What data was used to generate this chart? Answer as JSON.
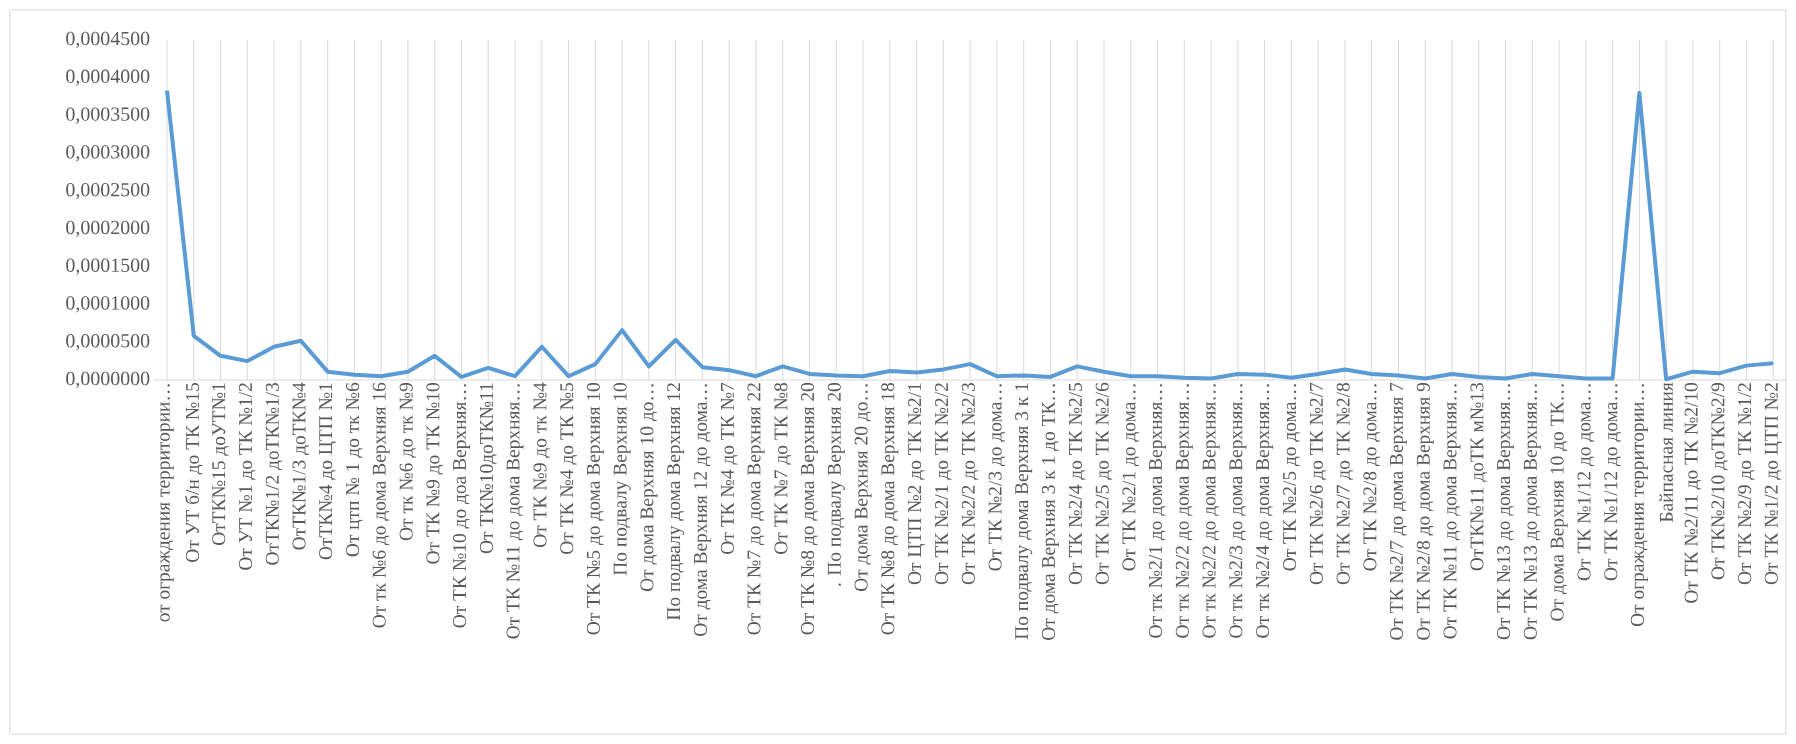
{
  "chart_data": {
    "type": "line",
    "color": "#5b9bd5",
    "line_style": "solid",
    "grid": "x",
    "categories": [
      "от ограждения территории…",
      "От УТ б/н до ТК №15",
      "ОтТК№15 доУТ№1",
      "От УТ №1 до ТК №1/2",
      "ОтТК№1/2 доТК№1/3",
      "ОтТК№1/3 доТК№4",
      "ОтТК№4 до ЦТП №1",
      "От цтп № 1 до тк №6",
      "От тк №6 до дома Верхняя 16",
      "От тк №6 до тк №9",
      "От ТК №9 до ТК №10",
      "От ТК №10 до доа Верхняя…",
      "От ТК№10доТК№11",
      "От ТК №11 до дома Верхняя…",
      "От ТК №9 до тк №4",
      "От ТК №4 до ТК №5",
      "От ТК №5 до дома Верхняя 10",
      "По подвалу Верхняя 10",
      "От дома Верхняя 10 до…",
      "По подвалу дома Верхняя 12",
      "От дома Верхняя 12 до дома…",
      "От ТК №4 до ТК №7",
      "От ТК №7 до дома Верхняя 22",
      "От ТК №7 до ТК №8",
      "От ТК №8 до дома Верхняя 20",
      ". По подвалу Верхняя 20",
      "От дома Верхняя 20 до…",
      "От ТК №8 до дома Верхняя 18",
      "От ЦТП №2 до ТК №2/1",
      "От ТК №2/1 до ТК №2/2",
      "От ТК №2/2 до ТК №2/3",
      "От ТК №2/3 до дома…",
      "По подвалу дома Верхняя 3 к 1",
      "От дома Верхняя 3 к 1 до ТК…",
      "От ТК №2/4 до ТК №2/5",
      "От ТК №2/5 до ТК №2/6",
      "От ТК №2/1 до дома…",
      "От тк №2/1 до дома Верхняя…",
      "От тк №2/2 до дома Верхняя…",
      "От тк №2/2 до дома Верхняя…",
      "От тк №2/3 до дома Верхняя…",
      "От тк №2/4 до дома Верхняя…",
      "От ТК №2/5 до дома…",
      "От ТК №2/6 до ТК №2/7",
      "От ТК №2/7 до ТК №2/8",
      "От ТК №2/8 до дома…",
      "От ТК №2/7 до дома Верхняя 7",
      "От ТК №2/8 до дома Верхняя 9",
      "От ТК №11 до дома Верхняя…",
      "ОтТК№11 доТК м№13",
      "От ТК №13 до дома Верхняя…",
      "От ТК №13 до дома Верхняя…",
      "От дома Верхняя 10 до ТК…",
      "От ТК №1/12 до дома…",
      "От ТК №1/12 до дома…",
      "От ограждения территории…",
      "Байпасная линия",
      "От ТК №2/11 до ТК №2/10",
      "От ТК№2/10 доТК№2/9",
      "От ТК №2/9 до ТК №1/2",
      "От ТК №1/2 до ЦТП №2"
    ],
    "values": [
      0.000383,
      5.85e-05,
      3.2e-05,
      2.5e-05,
      4.4e-05,
      5.2e-05,
      1.1e-05,
      7e-06,
      5e-06,
      1.1e-05,
      3.2e-05,
      4e-06,
      1.6e-05,
      5e-06,
      4.4e-05,
      5e-06,
      2.1e-05,
      6.6e-05,
      1.8e-05,
      5.3e-05,
      1.7e-05,
      1.3e-05,
      5e-06,
      1.8e-05,
      8e-06,
      6e-06,
      5e-06,
      1.2e-05,
      1e-05,
      1.4e-05,
      2.1e-05,
      5e-06,
      6e-06,
      4e-06,
      1.8e-05,
      1.1e-05,
      5e-06,
      5e-06,
      3e-06,
      2e-06,
      8e-06,
      7e-06,
      3e-06,
      8e-06,
      1.4e-05,
      8e-06,
      6e-06,
      2e-06,
      8e-06,
      4e-06,
      2e-06,
      8e-06,
      5e-06,
      2e-06,
      2e-06,
      0.00038,
      1e-06,
      1.1e-05,
      9e-06,
      1.9e-05,
      2.2e-05
    ],
    "ylim": [
      0,
      0.00045
    ],
    "yticks": [
      {
        "value": 0,
        "label": "0,0000000"
      },
      {
        "value": 5e-05,
        "label": "0,0000500"
      },
      {
        "value": 0.0001,
        "label": "0,0001000"
      },
      {
        "value": 0.00015,
        "label": "0,0001500"
      },
      {
        "value": 0.0002,
        "label": "0,0002000"
      },
      {
        "value": 0.00025,
        "label": "0,0002500"
      },
      {
        "value": 0.0003,
        "label": "0,0003000"
      },
      {
        "value": 0.00035,
        "label": "0,0003500"
      },
      {
        "value": 0.0004,
        "label": "0,0004000"
      },
      {
        "value": 0.00045,
        "label": "0,0004500"
      }
    ]
  }
}
